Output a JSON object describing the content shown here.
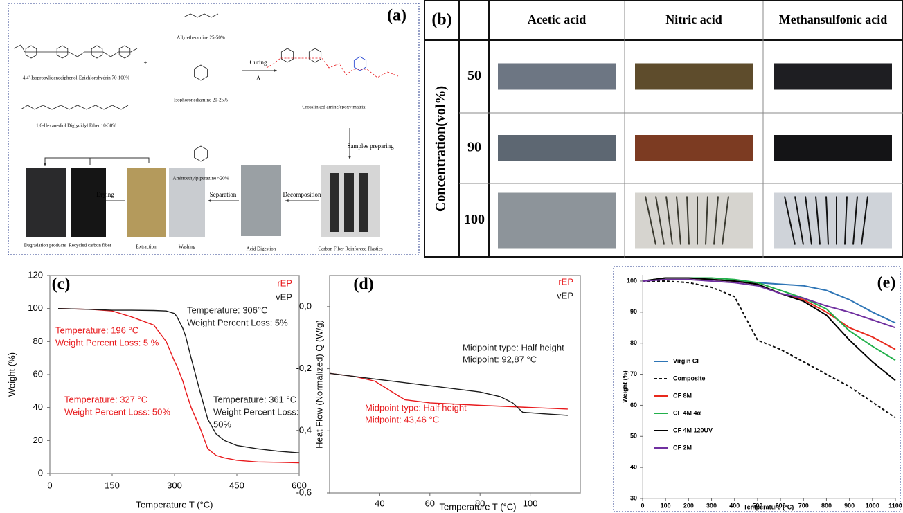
{
  "scheme": {
    "label": "(a)",
    "reactants": [
      "4,4'-Isopropylidenediphenol-Epichlorohydrin 70-100%",
      "Allyletheramine 25-50%",
      "Isophoronediamine 20-25%",
      "Aminoethylpiperazine ~20%",
      "1,6-Hexanediol Diglycidyl Ether 10-30%"
    ],
    "plus": "+",
    "curing": "Curing",
    "heat": "Δ",
    "product": "Crosslinked amine/epoxy matrix",
    "steps": [
      "Samples preparing",
      "Decomposition",
      "Separation",
      "Drying"
    ],
    "samples": [
      "Degradation products",
      "Recycled carbon fiber",
      "Extraction",
      "Washing",
      "Acid Digestion",
      "Carbon Fiber Reinforced Plastics"
    ]
  },
  "table": {
    "label": "(b)",
    "columns": [
      "Acetic acid",
      "Nitric acid",
      "Methansulfonic acid"
    ],
    "row_title": "Concentration(vol%)",
    "rows": [
      "50",
      "90",
      "100"
    ]
  },
  "chart_data": [
    {
      "type": "line",
      "label": "(c)",
      "xlabel": "Temperature T (°C)",
      "ylabel": "Weight (%)",
      "xlim": [
        0,
        600
      ],
      "ylim": [
        0,
        120
      ],
      "xticks": [
        0,
        150,
        300,
        450,
        600
      ],
      "yticks": [
        0,
        20,
        40,
        60,
        80,
        100,
        120
      ],
      "x": [
        20,
        100,
        150,
        196,
        250,
        280,
        300,
        306,
        320,
        327,
        340,
        361,
        380,
        400,
        420,
        450,
        500,
        550,
        600
      ],
      "series": [
        {
          "name": "rEP",
          "color": "#e8191c",
          "values": [
            100,
            99.5,
            98.5,
            95,
            90,
            80,
            68,
            65,
            56,
            50,
            40,
            28,
            15,
            11,
            9.5,
            8,
            7,
            6.8,
            6.5
          ]
        },
        {
          "name": "vEP",
          "color": "#1a1a1a",
          "values": [
            100,
            99.5,
            99,
            99,
            98.8,
            98.5,
            97,
            95,
            88,
            83,
            70,
            50,
            33,
            24,
            20,
            17,
            15,
            13.5,
            12.5
          ]
        }
      ],
      "annotations": [
        {
          "text": "Temperature: 306°C",
          "color": "#1a1a1a"
        },
        {
          "text": "Weight Percent Loss: 5%",
          "color": "#1a1a1a"
        },
        {
          "text": "Temperature: 196 °C",
          "color": "#e8191c"
        },
        {
          "text": "Weight Percent Loss: 5 %",
          "color": "#e8191c"
        },
        {
          "text": "Temperature: 327 °C",
          "color": "#e8191c"
        },
        {
          "text": "Weight Percent Loss: 50%",
          "color": "#e8191c"
        },
        {
          "text": "Temperature: 361 °C",
          "color": "#1a1a1a"
        },
        {
          "text": "Weight Percent Loss:",
          "color": "#1a1a1a"
        },
        {
          "text": "50%",
          "color": "#1a1a1a"
        }
      ]
    },
    {
      "type": "line",
      "label": "(d)",
      "xlabel": "Temperature T (°C)",
      "ylabel": "Heat Flow (Normalized) Q (W/g)",
      "xlim": [
        20,
        120
      ],
      "ylim": [
        -0.6,
        0.1
      ],
      "xticks": [
        40,
        60,
        80,
        100
      ],
      "yticks": [
        {
          "value": 0,
          "label": "0,0"
        },
        {
          "value": -0.2,
          "label": "-0,2"
        },
        {
          "value": -0.4,
          "label": "-0,4"
        },
        {
          "value": -0.6,
          "label": "-0,6"
        }
      ],
      "series": [
        {
          "name": "rEP",
          "color": "#e8191c",
          "x": [
            20,
            30,
            38,
            44,
            50,
            60,
            80,
            100,
            115
          ],
          "values": [
            -0.215,
            -0.225,
            -0.24,
            -0.27,
            -0.3,
            -0.31,
            -0.318,
            -0.325,
            -0.33
          ]
        },
        {
          "name": "vEP",
          "color": "#1a1a1a",
          "x": [
            20,
            40,
            60,
            80,
            88,
            93,
            97,
            105,
            115
          ],
          "values": [
            -0.215,
            -0.235,
            -0.255,
            -0.275,
            -0.29,
            -0.31,
            -0.34,
            -0.345,
            -0.35
          ]
        }
      ],
      "annotations": [
        {
          "text": "Midpoint type: Half height",
          "color": "#1a1a1a"
        },
        {
          "text": "Midpoint: 92,87 °C",
          "color": "#1a1a1a"
        },
        {
          "text": "Midpoint type: Half height",
          "color": "#e8191c"
        },
        {
          "text": "Midpoint: 43,46 °C",
          "color": "#e8191c"
        }
      ]
    },
    {
      "type": "line",
      "label": "(e)",
      "xlabel": "Temperature (°C)",
      "ylabel": "Weight (%)",
      "xlim": [
        0,
        1100
      ],
      "ylim": [
        30,
        102
      ],
      "xticks": [
        0,
        100,
        200,
        300,
        400,
        500,
        600,
        700,
        800,
        900,
        1000,
        1100
      ],
      "yticks": [
        30,
        40,
        50,
        60,
        70,
        80,
        90,
        100
      ],
      "x": [
        0,
        100,
        200,
        300,
        400,
        500,
        600,
        700,
        800,
        900,
        1000,
        1100
      ],
      "series": [
        {
          "name": "Virgin CF",
          "color": "#2e75b6",
          "values": [
            100,
            101,
            101,
            100.5,
            100,
            99.5,
            99,
            98.5,
            97,
            94,
            90,
            86.5
          ]
        },
        {
          "name": "Composite",
          "color": "#111111",
          "line_style": "dashed",
          "values": [
            100,
            100,
            99.5,
            98,
            95,
            81,
            78,
            74,
            70,
            66,
            61,
            56
          ]
        },
        {
          "name": "CF 8M",
          "color": "#e8291c",
          "values": [
            100,
            101,
            101,
            100.5,
            100,
            99,
            96,
            94,
            90,
            85,
            82,
            78
          ]
        },
        {
          "name": "CF 4M 4α",
          "color": "#22b04b",
          "values": [
            100,
            101,
            101,
            101,
            100.5,
            99.5,
            97,
            94.5,
            91,
            84,
            79,
            74.5
          ]
        },
        {
          "name": "CF 4M 120UV",
          "color": "#000000",
          "values": [
            100,
            101,
            101,
            100.5,
            100,
            99,
            96,
            93.5,
            89,
            81,
            74,
            68
          ]
        },
        {
          "name": "CF 2M",
          "color": "#7030a0",
          "values": [
            100,
            100.5,
            100.5,
            100,
            99.5,
            98.5,
            96,
            94.5,
            92,
            90,
            87.5,
            85
          ]
        }
      ]
    }
  ]
}
